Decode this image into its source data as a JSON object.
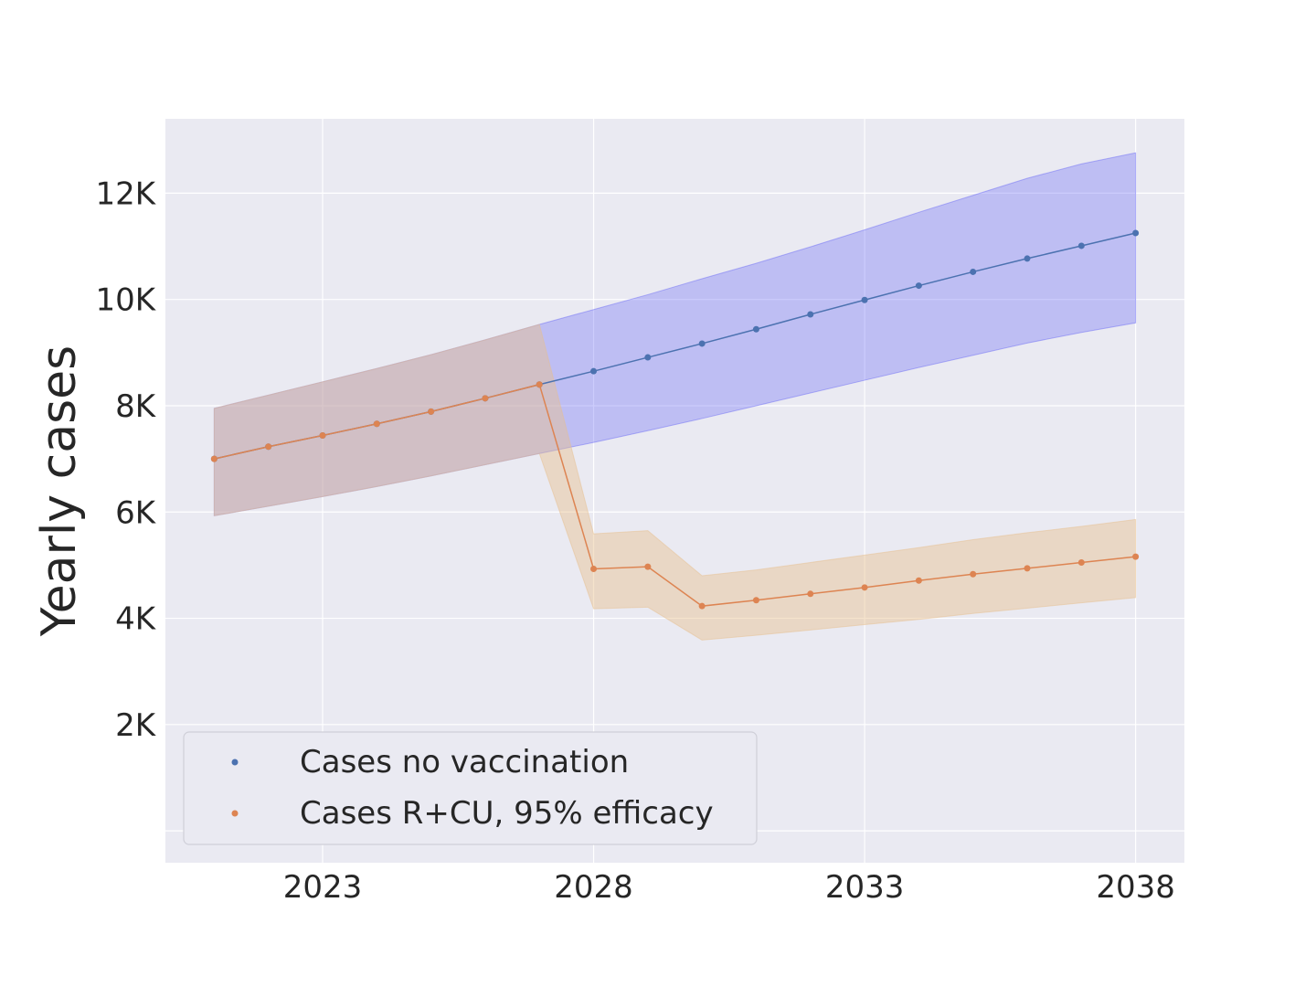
{
  "chart_data": {
    "type": "line",
    "title": "",
    "xlabel": "",
    "ylabel": "Yearly cases",
    "xlim": [
      2020.1,
      2038.9
    ],
    "ylim": [
      -600,
      13400
    ],
    "x_ticks": [
      2023,
      2028,
      2033,
      2038
    ],
    "x_tick_labels": [
      "2023",
      "2028",
      "2033",
      "2038"
    ],
    "y_ticks": [
      2000,
      4000,
      6000,
      8000,
      10000,
      12000
    ],
    "y_tick_labels": [
      "2K",
      "4K",
      "6K",
      "8K",
      "10K",
      "12K"
    ],
    "grid": true,
    "legend_position": "lower-left",
    "x": [
      2021,
      2022,
      2023,
      2024,
      2025,
      2026,
      2027,
      2028,
      2029,
      2030,
      2031,
      2032,
      2033,
      2034,
      2035,
      2036,
      2037,
      2038
    ],
    "series": [
      {
        "name": "Cases no vaccination",
        "color": "#4c72b0",
        "band_color": "#6e6ef5",
        "values": [
          7000,
          7230,
          7440,
          7660,
          7890,
          8140,
          8400,
          8650,
          8910,
          9170,
          9440,
          9720,
          9990,
          10260,
          10520,
          10770,
          11010,
          11250
        ],
        "lower": [
          5930,
          6110,
          6290,
          6480,
          6680,
          6890,
          7100,
          7310,
          7530,
          7760,
          8000,
          8240,
          8480,
          8720,
          8950,
          9180,
          9380,
          9560
        ],
        "upper": [
          7950,
          8200,
          8450,
          8700,
          8960,
          9240,
          9530,
          9810,
          10090,
          10390,
          10680,
          10990,
          11310,
          11640,
          11960,
          12280,
          12550,
          12760
        ]
      },
      {
        "name": "Cases R+CU, 95% efficacy",
        "color": "#dd8452",
        "band_color": "#e8c08f",
        "values": [
          7000,
          7230,
          7440,
          7660,
          7890,
          8140,
          8400,
          4930,
          4970,
          4230,
          4340,
          4460,
          4580,
          4710,
          4830,
          4940,
          5050,
          5160
        ],
        "lower": [
          5930,
          6110,
          6290,
          6480,
          6680,
          6890,
          7100,
          4180,
          4210,
          3590,
          3680,
          3780,
          3880,
          3980,
          4090,
          4190,
          4290,
          4390
        ],
        "upper": [
          7950,
          8200,
          8450,
          8700,
          8960,
          9240,
          9530,
          5590,
          5650,
          4800,
          4910,
          5050,
          5190,
          5330,
          5480,
          5610,
          5730,
          5860
        ]
      }
    ]
  }
}
